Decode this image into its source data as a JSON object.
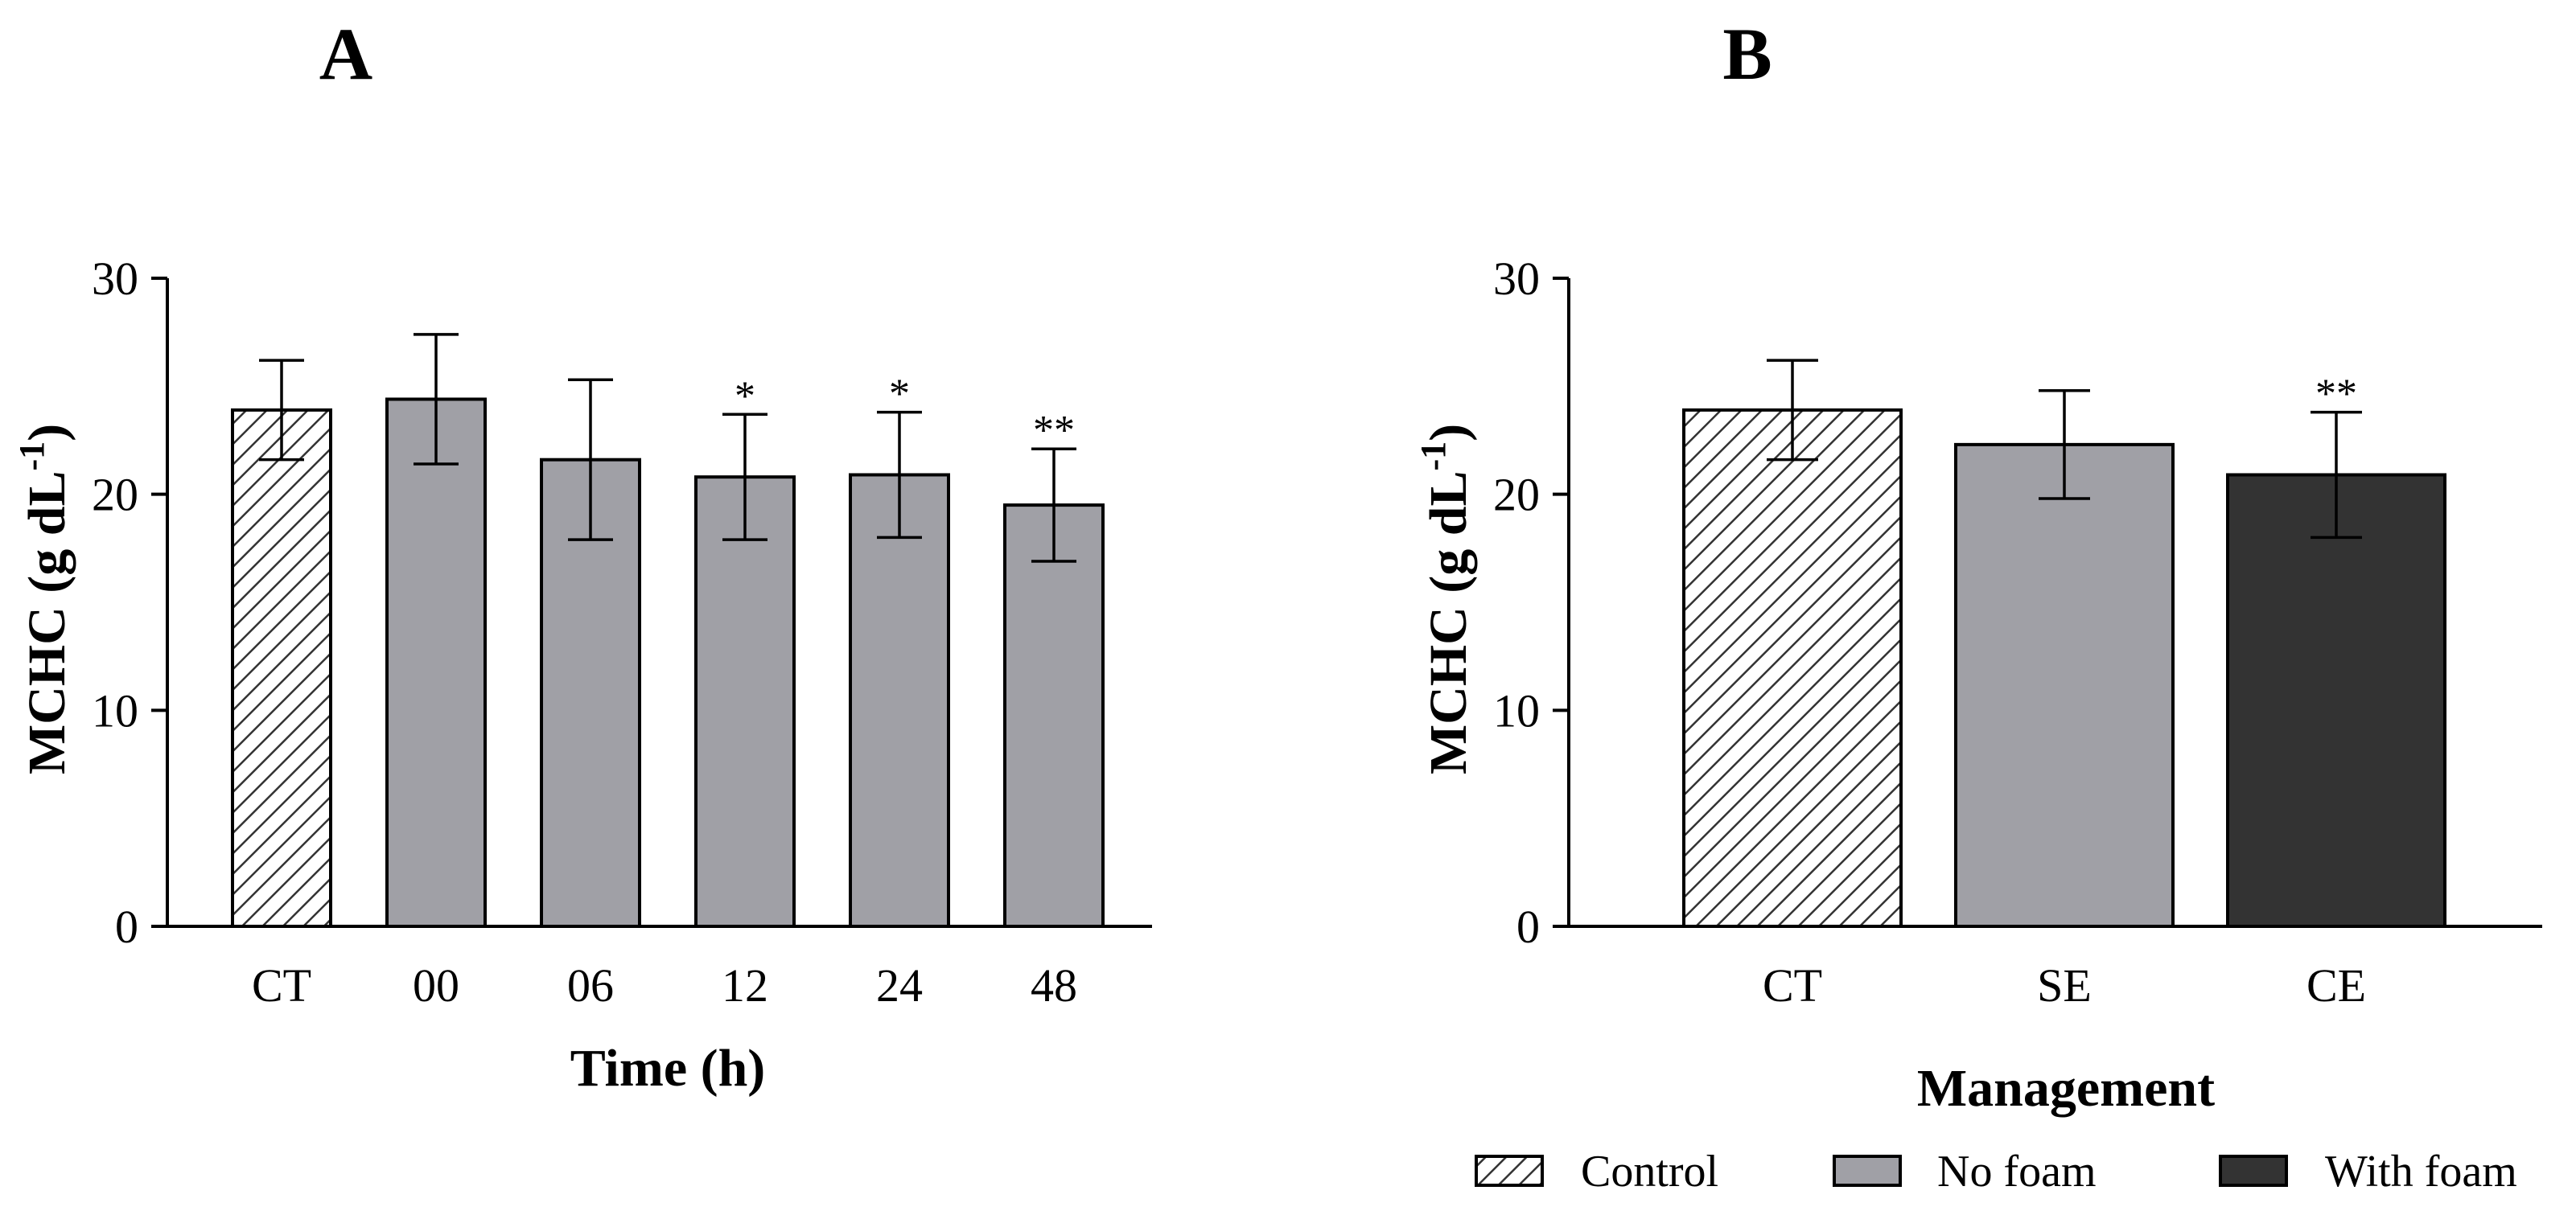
{
  "colors": {
    "control_bg": "#ffffff",
    "hatch": "#333333",
    "no_foam": "#a0a0a6",
    "with_foam": "#333333",
    "axis": "#000000"
  },
  "chart_data": [
    {
      "panel_label": "A",
      "type": "bar",
      "ylabel_main": "MCHC (g dL",
      "ylabel_sup": "-1",
      "ylabel_close": ")",
      "xlabel": "Time (h)",
      "ylim": [
        0,
        30
      ],
      "yticks": [
        0,
        10,
        20,
        30
      ],
      "categories": [
        "CT",
        "00",
        "06",
        "12",
        "24",
        "48"
      ],
      "values": [
        23.9,
        24.4,
        21.6,
        20.8,
        20.9,
        19.5
      ],
      "errors": [
        2.3,
        3.0,
        3.7,
        2.9,
        2.9,
        2.6
      ],
      "significance": [
        "",
        "",
        "",
        "*",
        "*",
        "**"
      ],
      "fills": [
        "hatch",
        "no_foam",
        "no_foam",
        "no_foam",
        "no_foam",
        "no_foam"
      ]
    },
    {
      "panel_label": "B",
      "type": "bar",
      "ylabel_main": "MCHC (g dL",
      "ylabel_sup": "-1",
      "ylabel_close": ")",
      "xlabel": "Management",
      "ylim": [
        0,
        30
      ],
      "yticks": [
        0,
        10,
        20,
        30
      ],
      "categories": [
        "CT",
        "SE",
        "CE"
      ],
      "values": [
        23.9,
        22.3,
        20.9
      ],
      "errors": [
        2.3,
        2.5,
        2.9
      ],
      "significance": [
        "",
        "",
        "**"
      ],
      "fills": [
        "hatch",
        "no_foam",
        "with_foam"
      ]
    }
  ],
  "legend": [
    {
      "label": "Control",
      "fill": "hatch"
    },
    {
      "label": "No foam",
      "fill": "no_foam"
    },
    {
      "label": "With foam",
      "fill": "with_foam"
    }
  ]
}
